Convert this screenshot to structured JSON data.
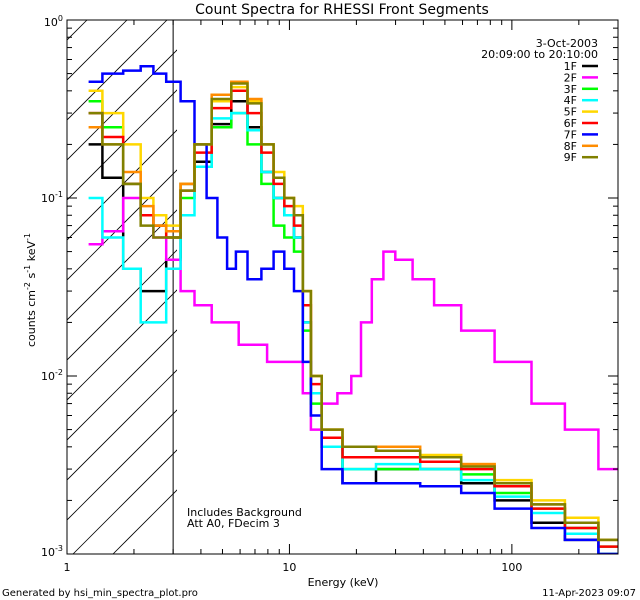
{
  "chart_data": {
    "type": "line",
    "title": "Count Spectra for RHESSI Front Segments",
    "xlabel": "Energy (keV)",
    "ylabel_parts": [
      "counts cm",
      "-2",
      " s",
      "-1",
      " keV",
      "-1"
    ],
    "x_scale": "log",
    "y_scale": "log",
    "xlim": [
      1,
      300
    ],
    "ylim": [
      0.001,
      1
    ],
    "x_ticks": [
      {
        "value": 1,
        "label": "1"
      },
      {
        "value": 10,
        "label": "10"
      },
      {
        "value": 100,
        "label": "100"
      }
    ],
    "y_ticks": [
      {
        "value": 1,
        "base": "10",
        "exp": "0"
      },
      {
        "value": 0.1,
        "base": "10",
        "exp": "-1"
      },
      {
        "value": 0.01,
        "base": "10",
        "exp": "-2"
      },
      {
        "value": 0.001,
        "base": "10",
        "exp": "-3"
      }
    ],
    "date": "3-Oct-2003",
    "time_range": "20:09:00 to 20:10:00",
    "attenuator_cutoff_kev": 3,
    "annotations": [
      "Includes Background",
      "Att A0, FDecim 3"
    ],
    "series": [
      {
        "name": "1F",
        "color": "#000000",
        "points": [
          [
            1.3,
            0.2
          ],
          [
            1.6,
            0.13
          ],
          [
            2.0,
            0.04
          ],
          [
            2.3,
            0.03
          ],
          [
            2.6,
            0.03
          ],
          [
            3.0,
            0.045
          ],
          [
            3.5,
            0.12
          ],
          [
            4.0,
            0.16
          ],
          [
            5.0,
            0.26
          ],
          [
            6.0,
            0.35
          ],
          [
            7.0,
            0.25
          ],
          [
            8.0,
            0.14
          ],
          [
            9.0,
            0.1
          ],
          [
            10,
            0.08
          ],
          [
            11,
            0.06
          ],
          [
            12,
            0.02
          ],
          [
            13,
            0.008
          ],
          [
            15,
            0.004
          ],
          [
            20,
            0.0025
          ],
          [
            30,
            0.003
          ],
          [
            50,
            0.003
          ],
          [
            70,
            0.0025
          ],
          [
            100,
            0.002
          ],
          [
            150,
            0.0015
          ],
          [
            200,
            0.0012
          ],
          [
            300,
            0.001
          ]
        ]
      },
      {
        "name": "2F",
        "color": "#ff00ff",
        "points": [
          [
            1.3,
            0.055
          ],
          [
            1.6,
            0.065
          ],
          [
            2.0,
            0.1
          ],
          [
            2.3,
            0.08
          ],
          [
            2.6,
            0.06
          ],
          [
            3.0,
            0.045
          ],
          [
            3.5,
            0.03
          ],
          [
            4.0,
            0.025
          ],
          [
            5.0,
            0.02
          ],
          [
            7.0,
            0.015
          ],
          [
            9.0,
            0.012
          ],
          [
            11,
            0.012
          ],
          [
            12,
            0.008
          ],
          [
            13,
            0.005
          ],
          [
            15,
            0.007
          ],
          [
            18,
            0.008
          ],
          [
            20,
            0.01
          ],
          [
            22,
            0.02
          ],
          [
            25,
            0.035
          ],
          [
            28,
            0.05
          ],
          [
            32,
            0.045
          ],
          [
            40,
            0.035
          ],
          [
            50,
            0.025
          ],
          [
            70,
            0.018
          ],
          [
            100,
            0.012
          ],
          [
            150,
            0.007
          ],
          [
            200,
            0.005
          ],
          [
            300,
            0.003
          ]
        ]
      },
      {
        "name": "3F",
        "color": "#00ff00",
        "points": [
          [
            1.3,
            0.35
          ],
          [
            1.6,
            0.25
          ],
          [
            2.0,
            0.12
          ],
          [
            2.3,
            0.08
          ],
          [
            2.6,
            0.07
          ],
          [
            3.0,
            0.06
          ],
          [
            3.5,
            0.1
          ],
          [
            4.0,
            0.15
          ],
          [
            5.0,
            0.25
          ],
          [
            6.0,
            0.3
          ],
          [
            7.0,
            0.2
          ],
          [
            8.0,
            0.12
          ],
          [
            9.0,
            0.07
          ],
          [
            10,
            0.06
          ],
          [
            11,
            0.05
          ],
          [
            12,
            0.018
          ],
          [
            13,
            0.007
          ],
          [
            15,
            0.004
          ],
          [
            20,
            0.003
          ],
          [
            30,
            0.003
          ],
          [
            50,
            0.003
          ],
          [
            70,
            0.0028
          ],
          [
            100,
            0.0022
          ],
          [
            150,
            0.0018
          ],
          [
            200,
            0.0014
          ],
          [
            300,
            0.0011
          ]
        ]
      },
      {
        "name": "4F",
        "color": "#00ffff",
        "points": [
          [
            1.3,
            0.1
          ],
          [
            1.6,
            0.06
          ],
          [
            2.0,
            0.04
          ],
          [
            2.3,
            0.02
          ],
          [
            2.6,
            0.02
          ],
          [
            3.0,
            0.04
          ],
          [
            3.5,
            0.08
          ],
          [
            4.0,
            0.15
          ],
          [
            5.0,
            0.28
          ],
          [
            6.0,
            0.3
          ],
          [
            7.0,
            0.24
          ],
          [
            8.0,
            0.14
          ],
          [
            9.0,
            0.1
          ],
          [
            10,
            0.08
          ],
          [
            11,
            0.06
          ],
          [
            12,
            0.02
          ],
          [
            13,
            0.008
          ],
          [
            15,
            0.004
          ],
          [
            20,
            0.003
          ],
          [
            30,
            0.0032
          ],
          [
            50,
            0.003
          ],
          [
            70,
            0.0026
          ],
          [
            100,
            0.0021
          ],
          [
            150,
            0.0017
          ],
          [
            200,
            0.0013
          ],
          [
            300,
            0.001
          ]
        ]
      },
      {
        "name": "5F",
        "color": "#ffd700",
        "points": [
          [
            1.3,
            0.4
          ],
          [
            1.6,
            0.3
          ],
          [
            2.0,
            0.2
          ],
          [
            2.3,
            0.1
          ],
          [
            2.6,
            0.08
          ],
          [
            3.0,
            0.07
          ],
          [
            3.5,
            0.12
          ],
          [
            4.0,
            0.2
          ],
          [
            5.0,
            0.35
          ],
          [
            6.0,
            0.42
          ],
          [
            7.0,
            0.35
          ],
          [
            8.0,
            0.2
          ],
          [
            9.0,
            0.14
          ],
          [
            10,
            0.1
          ],
          [
            11,
            0.09
          ],
          [
            12,
            0.03
          ],
          [
            13,
            0.01
          ],
          [
            15,
            0.005
          ],
          [
            20,
            0.004
          ],
          [
            30,
            0.0038
          ],
          [
            50,
            0.0036
          ],
          [
            70,
            0.0032
          ],
          [
            100,
            0.0026
          ],
          [
            150,
            0.002
          ],
          [
            200,
            0.0016
          ],
          [
            300,
            0.0012
          ]
        ]
      },
      {
        "name": "6F",
        "color": "#ff0000",
        "points": [
          [
            1.3,
            0.3
          ],
          [
            1.6,
            0.22
          ],
          [
            2.0,
            0.12
          ],
          [
            2.3,
            0.08
          ],
          [
            2.6,
            0.07
          ],
          [
            3.0,
            0.06
          ],
          [
            3.5,
            0.11
          ],
          [
            4.0,
            0.18
          ],
          [
            5.0,
            0.32
          ],
          [
            6.0,
            0.4
          ],
          [
            7.0,
            0.3
          ],
          [
            8.0,
            0.18
          ],
          [
            9.0,
            0.12
          ],
          [
            10,
            0.09
          ],
          [
            11,
            0.07
          ],
          [
            12,
            0.025
          ],
          [
            13,
            0.009
          ],
          [
            15,
            0.0045
          ],
          [
            20,
            0.0035
          ],
          [
            30,
            0.0035
          ],
          [
            50,
            0.0033
          ],
          [
            70,
            0.003
          ],
          [
            100,
            0.0024
          ],
          [
            150,
            0.0018
          ],
          [
            200,
            0.0014
          ],
          [
            300,
            0.0011
          ]
        ]
      },
      {
        "name": "7F",
        "color": "#0000ff",
        "points": [
          [
            1.3,
            0.45
          ],
          [
            1.6,
            0.5
          ],
          [
            2.0,
            0.52
          ],
          [
            2.3,
            0.55
          ],
          [
            2.6,
            0.5
          ],
          [
            3.0,
            0.45
          ],
          [
            3.5,
            0.35
          ],
          [
            4.0,
            0.2
          ],
          [
            4.5,
            0.1
          ],
          [
            5.0,
            0.06
          ],
          [
            5.5,
            0.04
          ],
          [
            6.0,
            0.05
          ],
          [
            7.0,
            0.035
          ],
          [
            8.0,
            0.04
          ],
          [
            9.0,
            0.05
          ],
          [
            10,
            0.04
          ],
          [
            11,
            0.03
          ],
          [
            12,
            0.012
          ],
          [
            13,
            0.006
          ],
          [
            15,
            0.003
          ],
          [
            20,
            0.0025
          ],
          [
            30,
            0.0025
          ],
          [
            50,
            0.0024
          ],
          [
            70,
            0.0022
          ],
          [
            100,
            0.0018
          ],
          [
            150,
            0.0014
          ],
          [
            200,
            0.0012
          ],
          [
            300,
            0.001
          ]
        ]
      },
      {
        "name": "8F",
        "color": "#ff8c00",
        "points": [
          [
            1.3,
            0.25
          ],
          [
            1.6,
            0.2
          ],
          [
            2.0,
            0.14
          ],
          [
            2.3,
            0.09
          ],
          [
            2.6,
            0.07
          ],
          [
            3.0,
            0.065
          ],
          [
            3.5,
            0.12
          ],
          [
            4.0,
            0.2
          ],
          [
            5.0,
            0.38
          ],
          [
            6.0,
            0.45
          ],
          [
            7.0,
            0.36
          ],
          [
            8.0,
            0.2
          ],
          [
            9.0,
            0.13
          ],
          [
            10,
            0.1
          ],
          [
            11,
            0.08
          ],
          [
            12,
            0.03
          ],
          [
            13,
            0.01
          ],
          [
            15,
            0.005
          ],
          [
            20,
            0.004
          ],
          [
            30,
            0.004
          ],
          [
            50,
            0.0035
          ],
          [
            70,
            0.0032
          ],
          [
            100,
            0.0025
          ],
          [
            150,
            0.0019
          ],
          [
            200,
            0.0015
          ],
          [
            300,
            0.0012
          ]
        ]
      },
      {
        "name": "9F",
        "color": "#808000",
        "points": [
          [
            1.3,
            0.3
          ],
          [
            1.6,
            0.2
          ],
          [
            2.0,
            0.12
          ],
          [
            2.3,
            0.07
          ],
          [
            2.6,
            0.06
          ],
          [
            3.0,
            0.06
          ],
          [
            3.5,
            0.11
          ],
          [
            4.0,
            0.2
          ],
          [
            5.0,
            0.36
          ],
          [
            6.0,
            0.44
          ],
          [
            7.0,
            0.34
          ],
          [
            8.0,
            0.2
          ],
          [
            9.0,
            0.13
          ],
          [
            10,
            0.1
          ],
          [
            11,
            0.08
          ],
          [
            12,
            0.03
          ],
          [
            13,
            0.01
          ],
          [
            15,
            0.005
          ],
          [
            20,
            0.004
          ],
          [
            30,
            0.0038
          ],
          [
            50,
            0.0035
          ],
          [
            70,
            0.0031
          ],
          [
            100,
            0.0025
          ],
          [
            150,
            0.0019
          ],
          [
            200,
            0.0015
          ],
          [
            300,
            0.0012
          ]
        ]
      }
    ]
  },
  "footer": {
    "generated_by": "Generated by hsi_min_spectra_plot.pro",
    "timestamp": "11-Apr-2023 09:07"
  }
}
